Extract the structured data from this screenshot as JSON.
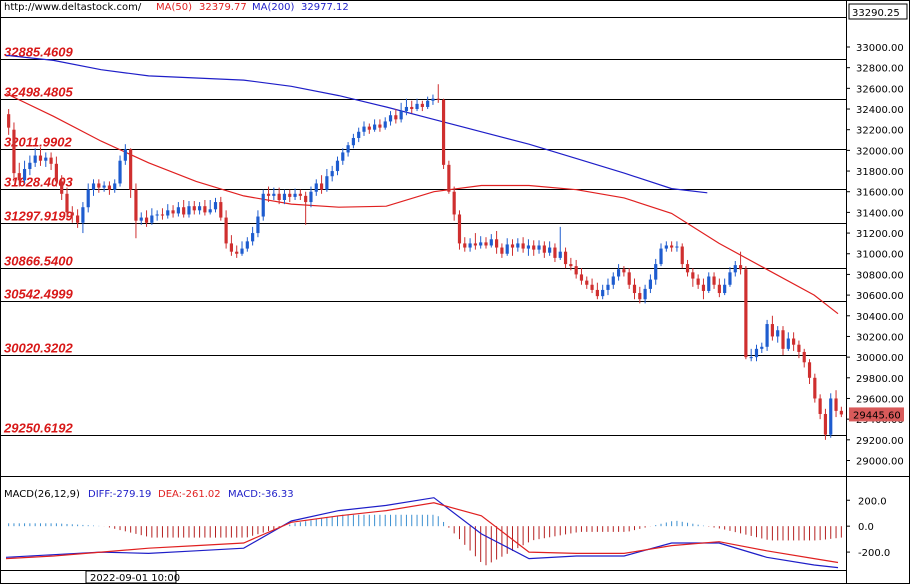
{
  "header": {
    "site": "http://www.deltastock.com/",
    "ma50_label": "MA(50)",
    "ma50_value": "32379.77",
    "ma200_label": "MA(200)",
    "ma200_value": "32977.12",
    "top_price": "33290.25"
  },
  "colors": {
    "bull": "#1e5ccf",
    "bear": "#cf2f2f",
    "ma50": "#e02020",
    "ma200": "#1e1ec8",
    "level_text": "#d81818",
    "hist_pos": "#3a8fd0",
    "hist_neg": "#b52020",
    "price_tag_bg": "#d85a5a"
  },
  "levels": [
    "32885.4609",
    "32498.4805",
    "32011.9902",
    "31628.4003",
    "31297.9199",
    "30866.5400",
    "30542.4999",
    "30020.3202",
    "29250.6192"
  ],
  "last_price": "29445.60",
  "macd_header": {
    "name": "MACD(26,12,9)",
    "diff": "DIFF:-279.19",
    "dea": "DEA:-261.02",
    "macd": "MACD:-36.33"
  },
  "time_label": "2022-09-01 10:00",
  "chart_data": {
    "type": "candlestick",
    "y_axis_ticks": [
      33000,
      32800,
      32600,
      32400,
      32200,
      32000,
      31800,
      31600,
      31400,
      31200,
      31000,
      30800,
      30600,
      30400,
      30200,
      30000,
      29800,
      29600,
      29400,
      29200,
      29000
    ],
    "ylim": [
      28850,
      33290.25
    ],
    "macd_ticks": [
      "200.0",
      "0.0",
      "-200.0"
    ],
    "macd_ylim": [
      -400,
      310
    ],
    "horizontal_levels": [
      32885.4609,
      32498.4805,
      32011.9902,
      31628.4003,
      31297.9199,
      30866.54,
      30542.4999,
      30020.3202,
      29250.6192
    ],
    "ma50_approx": [
      [
        0,
        32550
      ],
      [
        20,
        32330
      ],
      [
        40,
        32090
      ],
      [
        60,
        31880
      ],
      [
        80,
        31700
      ],
      [
        100,
        31560
      ],
      [
        120,
        31480
      ],
      [
        140,
        31450
      ],
      [
        160,
        31460
      ],
      [
        180,
        31600
      ],
      [
        200,
        31660
      ],
      [
        220,
        31660
      ],
      [
        240,
        31620
      ],
      [
        260,
        31540
      ],
      [
        280,
        31390
      ],
      [
        300,
        31100
      ],
      [
        320,
        30850
      ],
      [
        340,
        30600
      ],
      [
        350,
        30420
      ]
    ],
    "ma200_approx": [
      [
        0,
        32920
      ],
      [
        20,
        32870
      ],
      [
        40,
        32780
      ],
      [
        60,
        32720
      ],
      [
        80,
        32700
      ],
      [
        100,
        32680
      ],
      [
        120,
        32620
      ],
      [
        140,
        32530
      ],
      [
        160,
        32420
      ],
      [
        180,
        32300
      ],
      [
        200,
        32180
      ],
      [
        220,
        32060
      ],
      [
        240,
        31920
      ],
      [
        260,
        31780
      ],
      [
        280,
        31630
      ],
      [
        295,
        31590
      ]
    ],
    "diff_approx": [
      [
        0,
        -240
      ],
      [
        20,
        -220
      ],
      [
        40,
        -200
      ],
      [
        60,
        -210
      ],
      [
        80,
        -190
      ],
      [
        100,
        -170
      ],
      [
        120,
        40
      ],
      [
        140,
        120
      ],
      [
        160,
        160
      ],
      [
        180,
        220
      ],
      [
        200,
        -60
      ],
      [
        220,
        -250
      ],
      [
        240,
        -230
      ],
      [
        260,
        -230
      ],
      [
        280,
        -130
      ],
      [
        300,
        -130
      ],
      [
        320,
        -240
      ],
      [
        340,
        -300
      ],
      [
        350,
        -320
      ]
    ],
    "dea_approx": [
      [
        0,
        -250
      ],
      [
        20,
        -230
      ],
      [
        40,
        -200
      ],
      [
        60,
        -170
      ],
      [
        80,
        -150
      ],
      [
        100,
        -130
      ],
      [
        120,
        30
      ],
      [
        140,
        80
      ],
      [
        160,
        120
      ],
      [
        180,
        180
      ],
      [
        200,
        80
      ],
      [
        220,
        -200
      ],
      [
        240,
        -210
      ],
      [
        260,
        -210
      ],
      [
        280,
        -150
      ],
      [
        300,
        -120
      ],
      [
        320,
        -190
      ],
      [
        340,
        -250
      ],
      [
        350,
        -280
      ]
    ],
    "candles": [
      [
        32350,
        32220,
        32400,
        32150
      ],
      [
        32200,
        31780,
        32270,
        31700
      ],
      [
        31780,
        31710,
        31880,
        31650
      ],
      [
        31710,
        31820,
        31900,
        31680
      ],
      [
        31820,
        31880,
        31950,
        31760
      ],
      [
        31880,
        31950,
        32020,
        31840
      ],
      [
        31950,
        31900,
        32030,
        31850
      ],
      [
        31900,
        31930,
        31980,
        31840
      ],
      [
        31930,
        31870,
        31980,
        31810
      ],
      [
        31870,
        31700,
        31940,
        31650
      ],
      [
        31700,
        31580,
        31760,
        31520
      ],
      [
        31580,
        31400,
        31640,
        31350
      ],
      [
        31400,
        31370,
        31460,
        31300
      ],
      [
        31370,
        31300,
        31430,
        31250
      ],
      [
        31300,
        31450,
        31500,
        31200
      ],
      [
        31450,
        31620,
        31680,
        31400
      ],
      [
        31620,
        31680,
        31720,
        31560
      ],
      [
        31680,
        31640,
        31720,
        31590
      ],
      [
        31640,
        31660,
        31700,
        31600
      ],
      [
        31660,
        31620,
        31700,
        31570
      ],
      [
        31620,
        31680,
        31720,
        31590
      ],
      [
        31680,
        31900,
        31950,
        31650
      ],
      [
        31900,
        32010,
        32060,
        31860
      ],
      [
        32010,
        31620,
        32020,
        31540
      ],
      [
        31620,
        31320,
        31680,
        31150
      ],
      [
        31320,
        31350,
        31400,
        31280
      ],
      [
        31350,
        31300,
        31420,
        31260
      ],
      [
        31300,
        31370,
        31440,
        31280
      ],
      [
        31370,
        31380,
        31420,
        31320
      ],
      [
        31380,
        31370,
        31440,
        31330
      ],
      [
        31370,
        31420,
        31480,
        31340
      ],
      [
        31420,
        31390,
        31470,
        31350
      ],
      [
        31390,
        31450,
        31500,
        31360
      ],
      [
        31450,
        31380,
        31520,
        31350
      ],
      [
        31380,
        31460,
        31510,
        31350
      ],
      [
        31460,
        31420,
        31510,
        31380
      ],
      [
        31420,
        31460,
        31500,
        31380
      ],
      [
        31460,
        31400,
        31520,
        31370
      ],
      [
        31400,
        31430,
        31520,
        31380
      ],
      [
        31430,
        31500,
        31540,
        31400
      ],
      [
        31500,
        31350,
        31550,
        31320
      ],
      [
        31350,
        31100,
        31420,
        31050
      ],
      [
        31100,
        31020,
        31180,
        30980
      ],
      [
        31020,
        31000,
        31080,
        30960
      ],
      [
        31000,
        31050,
        31120,
        30980
      ],
      [
        31050,
        31120,
        31160,
        31020
      ],
      [
        31120,
        31200,
        31260,
        31080
      ],
      [
        31200,
        31360,
        31420,
        31160
      ],
      [
        31360,
        31580,
        31620,
        31320
      ],
      [
        31580,
        31560,
        31650,
        31500
      ],
      [
        31560,
        31580,
        31640,
        31520
      ],
      [
        31580,
        31520,
        31640,
        31480
      ],
      [
        31520,
        31580,
        31620,
        31480
      ],
      [
        31580,
        31550,
        31620,
        31500
      ],
      [
        31550,
        31580,
        31630,
        31520
      ],
      [
        31580,
        31560,
        31620,
        31520
      ],
      [
        31560,
        31500,
        31600,
        31280
      ],
      [
        31500,
        31600,
        31650,
        31450
      ],
      [
        31600,
        31680,
        31720,
        31560
      ],
      [
        31680,
        31620,
        31760,
        31580
      ],
      [
        31620,
        31750,
        31820,
        31600
      ],
      [
        31750,
        31800,
        31850,
        31700
      ],
      [
        31800,
        31900,
        31940,
        31760
      ],
      [
        31900,
        31980,
        32020,
        31860
      ],
      [
        31980,
        32050,
        32080,
        31940
      ],
      [
        32050,
        32120,
        32160,
        32020
      ],
      [
        32120,
        32180,
        32220,
        32080
      ],
      [
        32180,
        32230,
        32280,
        32140
      ],
      [
        32230,
        32200,
        32260,
        32160
      ],
      [
        32200,
        32250,
        32300,
        32180
      ],
      [
        32250,
        32220,
        32300,
        32180
      ],
      [
        32220,
        32280,
        32320,
        32200
      ],
      [
        32280,
        32340,
        32380,
        32240
      ],
      [
        32340,
        32300,
        32400,
        32260
      ],
      [
        32300,
        32380,
        32460,
        32270
      ],
      [
        32380,
        32420,
        32500,
        32340
      ],
      [
        32420,
        32400,
        32480,
        32360
      ],
      [
        32400,
        32450,
        32500,
        32380
      ],
      [
        32450,
        32420,
        32480,
        32380
      ],
      [
        32420,
        32480,
        32520,
        32400
      ],
      [
        32480,
        32500,
        32540,
        32440
      ],
      [
        32500,
        32490,
        32640,
        32460
      ],
      [
        32490,
        31860,
        32500,
        31820
      ],
      [
        31860,
        31600,
        31900,
        31580
      ],
      [
        31600,
        31380,
        31650,
        31320
      ],
      [
        31380,
        31100,
        31420,
        31040
      ],
      [
        31100,
        31060,
        31160,
        31020
      ],
      [
        31060,
        31100,
        31150,
        31020
      ],
      [
        31100,
        31080,
        31200,
        31040
      ],
      [
        31080,
        31110,
        31170,
        31050
      ],
      [
        31110,
        31080,
        31160,
        31050
      ],
      [
        31080,
        31140,
        31190,
        31060
      ],
      [
        31140,
        31060,
        31220,
        31000
      ],
      [
        31060,
        31000,
        31100,
        30960
      ],
      [
        31000,
        31090,
        31150,
        30980
      ],
      [
        31090,
        31060,
        31140,
        30980
      ],
      [
        31060,
        31100,
        31150,
        31020
      ],
      [
        31100,
        31050,
        31160,
        31010
      ],
      [
        31050,
        31080,
        31140,
        30980
      ],
      [
        31080,
        31040,
        31130,
        30980
      ],
      [
        31040,
        31080,
        31130,
        31000
      ],
      [
        31080,
        31010,
        31120,
        30960
      ],
      [
        31010,
        31060,
        31120,
        30980
      ],
      [
        31060,
        30960,
        31100,
        30920
      ],
      [
        30960,
        31020,
        31260,
        30940
      ],
      [
        31020,
        30900,
        31060,
        30860
      ],
      [
        30900,
        30880,
        30960,
        30840
      ],
      [
        30880,
        30800,
        30940,
        30760
      ],
      [
        30800,
        30740,
        30860,
        30700
      ],
      [
        30740,
        30700,
        30780,
        30660
      ],
      [
        30700,
        30650,
        30760,
        30620
      ],
      [
        30650,
        30590,
        30720,
        30560
      ],
      [
        30590,
        30650,
        30700,
        30560
      ],
      [
        30650,
        30700,
        30760,
        30600
      ],
      [
        30700,
        30780,
        30820,
        30660
      ],
      [
        30780,
        30850,
        30900,
        30740
      ],
      [
        30850,
        30820,
        30880,
        30780
      ],
      [
        30820,
        30700,
        30860,
        30660
      ],
      [
        30700,
        30620,
        30760,
        30560
      ],
      [
        30620,
        30560,
        30680,
        30520
      ],
      [
        30560,
        30660,
        30700,
        30520
      ],
      [
        30660,
        30750,
        30800,
        30620
      ],
      [
        30750,
        30900,
        30950,
        30700
      ],
      [
        30900,
        31050,
        31100,
        30880
      ],
      [
        31050,
        31080,
        31120,
        31020
      ],
      [
        31080,
        31060,
        31120,
        31020
      ],
      [
        31060,
        31070,
        31120,
        31020
      ],
      [
        31070,
        30900,
        31100,
        30860
      ],
      [
        30900,
        30820,
        30940,
        30780
      ],
      [
        30820,
        30760,
        30860,
        30680
      ],
      [
        30760,
        30700,
        30800,
        30660
      ],
      [
        30700,
        30640,
        30760,
        30560
      ],
      [
        30640,
        30780,
        30820,
        30620
      ],
      [
        30780,
        30700,
        30820,
        30660
      ],
      [
        30700,
        30620,
        30760,
        30580
      ],
      [
        30620,
        30700,
        30760,
        30600
      ],
      [
        30700,
        30820,
        30870,
        30680
      ],
      [
        30820,
        30890,
        30930,
        30780
      ],
      [
        30890,
        30850,
        31020,
        30800
      ],
      [
        30850,
        30000,
        30880,
        29980
      ],
      [
        30000,
        30000,
        30080,
        29960
      ],
      [
        30000,
        30080,
        30120,
        29960
      ],
      [
        30080,
        30100,
        30140,
        30040
      ],
      [
        30100,
        30320,
        30360,
        30060
      ],
      [
        30320,
        30200,
        30400,
        30160
      ],
      [
        30200,
        30260,
        30300,
        30140
      ],
      [
        30260,
        30080,
        30300,
        30020
      ],
      [
        30080,
        30180,
        30240,
        30060
      ],
      [
        30180,
        30120,
        30240,
        30060
      ],
      [
        30120,
        30050,
        30160,
        29990
      ],
      [
        30050,
        29950,
        30080,
        29900
      ],
      [
        29950,
        29800,
        29980,
        29740
      ],
      [
        29800,
        29600,
        29840,
        29560
      ],
      [
        29600,
        29450,
        29640,
        29400
      ],
      [
        29450,
        29250,
        29500,
        29200
      ],
      [
        29250,
        29600,
        29650,
        29220
      ],
      [
        29600,
        29480,
        29680,
        29420
      ],
      [
        29480,
        29445.6,
        29520,
        29420
      ]
    ]
  }
}
